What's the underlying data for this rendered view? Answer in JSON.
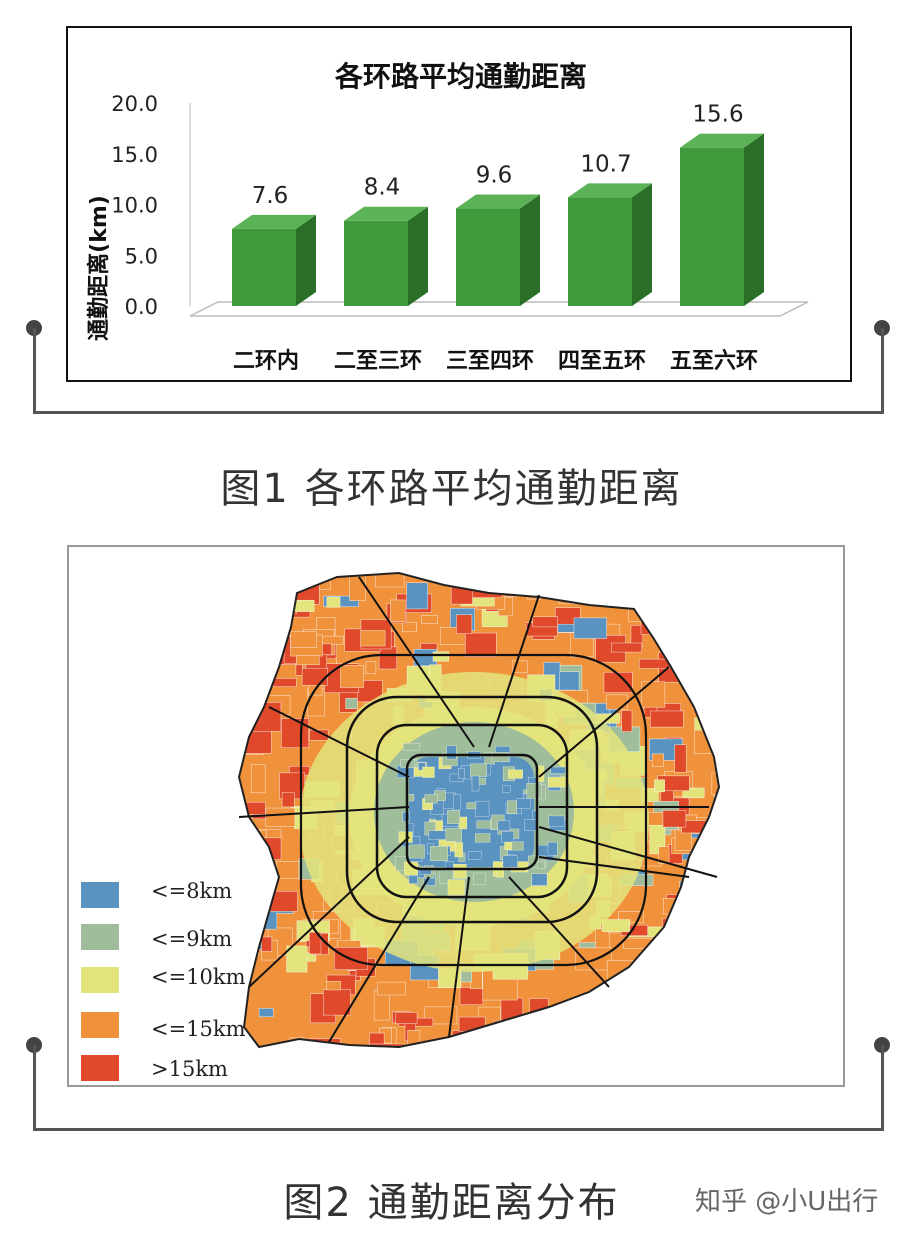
{
  "chart_data": {
    "type": "bar",
    "title": "各环路平均通勤距离",
    "ylabel": "通勤距离(km)",
    "categories": [
      "二环内",
      "二至三环",
      "三至四环",
      "四至五环",
      "五至六环"
    ],
    "values": [
      7.6,
      8.4,
      9.6,
      10.7,
      15.6
    ],
    "value_labels": [
      "7.6",
      "8.4",
      "9.6",
      "10.7",
      "15.6"
    ],
    "ylim": [
      0,
      20
    ],
    "yticks": [
      "20.0",
      "15.0",
      "10.0",
      "5.0",
      "0.0"
    ],
    "ytick_values": [
      20,
      15,
      10,
      5,
      0
    ],
    "bar_color": "#3f9a3c",
    "bar_side_color": "#2a6e28",
    "bar_top_color": "#5cb357",
    "grid": false
  },
  "captions": {
    "fig1": "图1 各环路平均通勤距离",
    "fig2": "图2 通勤距离分布"
  },
  "map": {
    "legend": [
      {
        "label": "<=8km",
        "color": "#5b93c0"
      },
      {
        "label": "<=9km",
        "color": "#9fbd9b"
      },
      {
        "label": "<=10km",
        "color": "#e3e47c"
      },
      {
        "label": "<=15km",
        "color": "#f0923c"
      },
      {
        "label": ">15km",
        "color": "#e04a2b"
      }
    ]
  },
  "watermark": "知乎 @小U出行"
}
